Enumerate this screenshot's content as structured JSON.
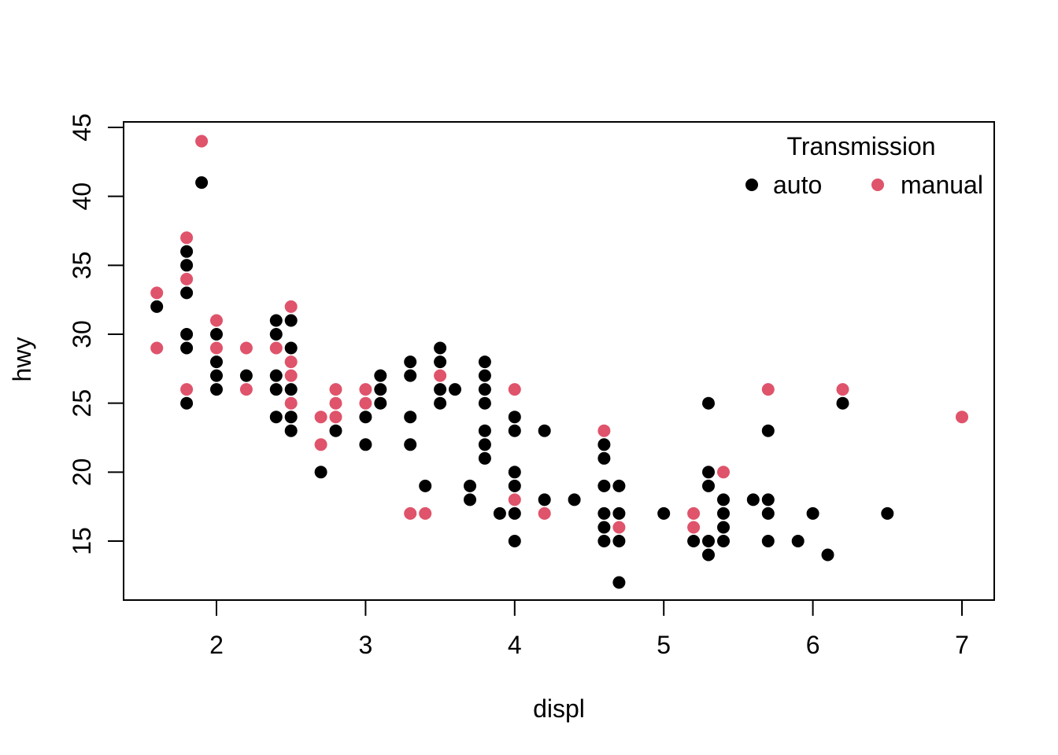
{
  "figure": {
    "xlabel": "displ",
    "ylabel": "hwy"
  },
  "legend": {
    "title": "Transmission",
    "position": "top-right-inside",
    "boxed": false,
    "items": [
      {
        "label": "auto",
        "color": "#000000"
      },
      {
        "label": "manual",
        "color": "#DF536B"
      }
    ]
  },
  "chart_data": {
    "type": "scatter",
    "title": "",
    "xlabel": "displ",
    "ylabel": "hwy",
    "xlim": [
      1.38,
      7.21
    ],
    "ylim": [
      10.7,
      45.4
    ],
    "x_ticks": [
      2,
      3,
      4,
      5,
      6,
      7
    ],
    "y_ticks": [
      15,
      20,
      25,
      30,
      35,
      40,
      45
    ],
    "grid": false,
    "legend": {
      "title": "Transmission",
      "position": "top-right-inside",
      "boxed": false
    },
    "marker": {
      "shape": "filled-circle",
      "radius_px": 8
    },
    "series": [
      {
        "name": "auto",
        "color": "#000000",
        "points": [
          [
            1.6,
            32
          ],
          [
            1.8,
            36
          ],
          [
            1.8,
            35
          ],
          [
            1.8,
            33
          ],
          [
            1.8,
            30
          ],
          [
            1.8,
            29
          ],
          [
            1.8,
            25
          ],
          [
            1.9,
            41
          ],
          [
            2.0,
            30
          ],
          [
            2.0,
            28
          ],
          [
            2.0,
            27
          ],
          [
            2.0,
            26
          ],
          [
            2.2,
            27
          ],
          [
            2.4,
            31
          ],
          [
            2.4,
            30
          ],
          [
            2.4,
            27
          ],
          [
            2.4,
            26
          ],
          [
            2.4,
            24
          ],
          [
            2.5,
            31
          ],
          [
            2.5,
            29
          ],
          [
            2.5,
            26
          ],
          [
            2.5,
            24
          ],
          [
            2.5,
            23
          ],
          [
            2.7,
            20
          ],
          [
            2.8,
            23
          ],
          [
            3.0,
            24
          ],
          [
            3.0,
            22
          ],
          [
            3.1,
            27
          ],
          [
            3.1,
            26
          ],
          [
            3.1,
            25
          ],
          [
            3.3,
            28
          ],
          [
            3.3,
            27
          ],
          [
            3.3,
            24
          ],
          [
            3.3,
            22
          ],
          [
            3.4,
            19
          ],
          [
            3.5,
            29
          ],
          [
            3.5,
            28
          ],
          [
            3.5,
            26
          ],
          [
            3.5,
            25
          ],
          [
            3.6,
            26
          ],
          [
            3.7,
            19
          ],
          [
            3.7,
            18
          ],
          [
            3.8,
            28
          ],
          [
            3.8,
            27
          ],
          [
            3.8,
            26
          ],
          [
            3.8,
            25
          ],
          [
            3.8,
            23
          ],
          [
            3.8,
            22
          ],
          [
            3.8,
            21
          ],
          [
            3.9,
            17
          ],
          [
            4.0,
            24
          ],
          [
            4.0,
            23
          ],
          [
            4.0,
            20
          ],
          [
            4.0,
            19
          ],
          [
            4.0,
            17
          ],
          [
            4.0,
            15
          ],
          [
            4.2,
            23
          ],
          [
            4.2,
            18
          ],
          [
            4.4,
            18
          ],
          [
            4.6,
            22
          ],
          [
            4.6,
            21
          ],
          [
            4.6,
            19
          ],
          [
            4.6,
            17
          ],
          [
            4.6,
            16
          ],
          [
            4.6,
            15
          ],
          [
            4.7,
            19
          ],
          [
            4.7,
            17
          ],
          [
            4.7,
            15
          ],
          [
            4.7,
            12
          ],
          [
            5.0,
            17
          ],
          [
            5.2,
            15
          ],
          [
            5.3,
            25
          ],
          [
            5.3,
            20
          ],
          [
            5.3,
            19
          ],
          [
            5.3,
            15
          ],
          [
            5.3,
            14
          ],
          [
            5.4,
            18
          ],
          [
            5.4,
            17
          ],
          [
            5.4,
            16
          ],
          [
            5.4,
            15
          ],
          [
            5.6,
            18
          ],
          [
            5.7,
            23
          ],
          [
            5.7,
            18
          ],
          [
            5.7,
            17
          ],
          [
            5.7,
            15
          ],
          [
            5.9,
            15
          ],
          [
            6.0,
            17
          ],
          [
            6.1,
            14
          ],
          [
            6.2,
            25
          ],
          [
            6.5,
            17
          ]
        ]
      },
      {
        "name": "manual",
        "color": "#DF536B",
        "points": [
          [
            1.6,
            33
          ],
          [
            1.6,
            29
          ],
          [
            1.8,
            37
          ],
          [
            1.8,
            34
          ],
          [
            1.8,
            26
          ],
          [
            1.9,
            44
          ],
          [
            2.0,
            31
          ],
          [
            2.0,
            29
          ],
          [
            2.2,
            29
          ],
          [
            2.2,
            26
          ],
          [
            2.4,
            29
          ],
          [
            2.5,
            32
          ],
          [
            2.5,
            28
          ],
          [
            2.5,
            27
          ],
          [
            2.5,
            25
          ],
          [
            2.7,
            24
          ],
          [
            2.7,
            22
          ],
          [
            2.8,
            26
          ],
          [
            2.8,
            25
          ],
          [
            2.8,
            24
          ],
          [
            3.0,
            26
          ],
          [
            3.0,
            25
          ],
          [
            3.3,
            17
          ],
          [
            3.4,
            17
          ],
          [
            3.5,
            27
          ],
          [
            4.0,
            26
          ],
          [
            4.0,
            18
          ],
          [
            4.2,
            17
          ],
          [
            4.6,
            23
          ],
          [
            4.7,
            16
          ],
          [
            5.2,
            17
          ],
          [
            5.2,
            16
          ],
          [
            5.4,
            20
          ],
          [
            5.7,
            26
          ],
          [
            6.2,
            26
          ],
          [
            7.0,
            24
          ]
        ]
      }
    ]
  }
}
